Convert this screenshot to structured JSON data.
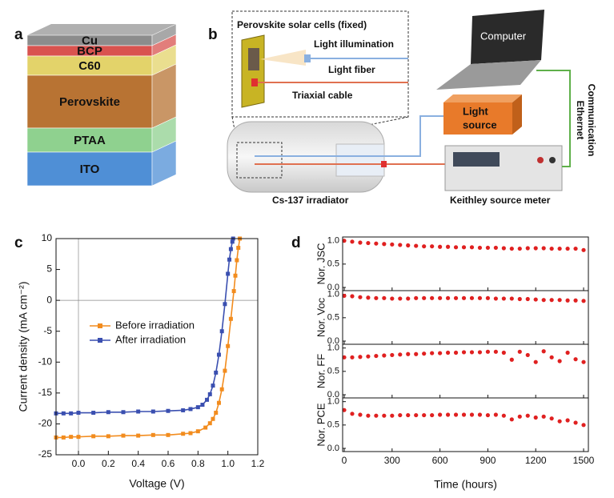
{
  "figure_a": {
    "label": "a",
    "layers": [
      {
        "name": "Cu",
        "color": "#8c8c8c"
      },
      {
        "name": "BCP",
        "color": "#d9534f"
      },
      {
        "name": "C60",
        "color": "#e3d36a"
      },
      {
        "name": "Perovskite",
        "color": "#b87333"
      },
      {
        "name": "PTAA",
        "color": "#8fd18f"
      },
      {
        "name": "ITO",
        "color": "#4f8fd6"
      }
    ]
  },
  "figure_b": {
    "label": "b",
    "sample": "Perovskite solar cells (fixed)",
    "illumination": "Light illumination",
    "fiber": "Light fiber",
    "cable": "Triaxial cable",
    "computer": "Computer",
    "ethernet": [
      "Ethernet",
      "Communication"
    ],
    "light_source": [
      "Light",
      "source"
    ],
    "irradiator": "Cs-137 irradiator",
    "meter": "Keithley source meter"
  },
  "chart_data": [
    {
      "type": "line",
      "label": "c",
      "xlabel": "Voltage (V)",
      "ylabel": "Current density (mA cm⁻²)",
      "xlim": [
        -0.15,
        1.2
      ],
      "ylim": [
        -25,
        10
      ],
      "xticks": [
        {
          "value": 0,
          "label": "0.0"
        },
        0.2,
        0.4,
        0.6,
        0.8,
        {
          "value": 1,
          "label": "1.0"
        },
        1.2
      ],
      "yticks": [
        -25,
        -20,
        -15,
        -10,
        -5,
        0,
        5,
        10
      ],
      "series": [
        {
          "name": "Before irradiation",
          "color": "#f28c1e",
          "x": [
            -0.15,
            -0.1,
            -0.05,
            0,
            0.1,
            0.2,
            0.3,
            0.4,
            0.5,
            0.6,
            0.7,
            0.75,
            0.8,
            0.85,
            0.88,
            0.9,
            0.92,
            0.94,
            0.96,
            0.98,
            1.0,
            1.02,
            1.04,
            1.05,
            1.06,
            1.07,
            1.08
          ],
          "values": [
            -22.2,
            -22.2,
            -22.1,
            -22.1,
            -22.0,
            -22.0,
            -21.9,
            -21.9,
            -21.8,
            -21.8,
            -21.6,
            -21.5,
            -21.2,
            -20.6,
            -19.9,
            -19.2,
            -18.2,
            -16.6,
            -14.4,
            -11.4,
            -7.4,
            -3.0,
            1.5,
            4.0,
            6.5,
            8.5,
            10
          ]
        },
        {
          "name": "After irradiation",
          "color": "#3a4fb0",
          "x": [
            -0.15,
            -0.1,
            -0.05,
            0,
            0.1,
            0.2,
            0.3,
            0.4,
            0.5,
            0.6,
            0.7,
            0.75,
            0.8,
            0.83,
            0.86,
            0.88,
            0.9,
            0.92,
            0.94,
            0.96,
            0.98,
            1.0,
            1.01,
            1.02,
            1.03,
            1.035
          ],
          "values": [
            -18.3,
            -18.3,
            -18.3,
            -18.2,
            -18.2,
            -18.1,
            -18.1,
            -18.0,
            -18.0,
            -17.9,
            -17.8,
            -17.6,
            -17.3,
            -16.9,
            -16.1,
            -15.2,
            -13.8,
            -11.7,
            -8.8,
            -5.0,
            -0.6,
            4.3,
            6.6,
            8.3,
            9.5,
            10
          ]
        }
      ]
    },
    {
      "type": "scatter",
      "label": "d",
      "xlabel": "Time (hours)",
      "color": "#e02020",
      "xlim": [
        -10,
        1530
      ],
      "xticks": [
        0,
        300,
        600,
        900,
        1200,
        1500
      ],
      "ylim": [
        0,
        1.08
      ],
      "yticks": [
        {
          "value": 0,
          "label": "0.0"
        },
        0.5,
        {
          "value": 1,
          "label": "1.0"
        }
      ],
      "x": [
        0,
        50,
        100,
        150,
        200,
        250,
        300,
        350,
        400,
        450,
        500,
        550,
        600,
        650,
        700,
        750,
        800,
        850,
        900,
        950,
        1000,
        1050,
        1100,
        1150,
        1200,
        1250,
        1300,
        1350,
        1400,
        1450,
        1500
      ],
      "series": [
        {
          "name": "Nor. JSC",
          "values": [
            1.0,
            0.98,
            0.96,
            0.95,
            0.94,
            0.93,
            0.92,
            0.91,
            0.9,
            0.89,
            0.88,
            0.88,
            0.87,
            0.87,
            0.86,
            0.86,
            0.86,
            0.85,
            0.85,
            0.85,
            0.84,
            0.83,
            0.83,
            0.84,
            0.84,
            0.84,
            0.83,
            0.83,
            0.83,
            0.83,
            0.8
          ]
        },
        {
          "name": "Nor. Voc",
          "values": [
            0.97,
            0.96,
            0.94,
            0.93,
            0.92,
            0.92,
            0.91,
            0.91,
            0.91,
            0.92,
            0.92,
            0.92,
            0.92,
            0.92,
            0.92,
            0.92,
            0.92,
            0.92,
            0.92,
            0.91,
            0.91,
            0.91,
            0.9,
            0.9,
            0.89,
            0.88,
            0.88,
            0.88,
            0.87,
            0.87,
            0.86
          ]
        },
        {
          "name": "Nor. FF",
          "values": [
            0.8,
            0.8,
            0.81,
            0.82,
            0.83,
            0.84,
            0.85,
            0.86,
            0.87,
            0.87,
            0.88,
            0.89,
            0.89,
            0.9,
            0.9,
            0.91,
            0.91,
            0.91,
            0.92,
            0.92,
            0.9,
            0.75,
            0.92,
            0.85,
            0.7,
            0.93,
            0.8,
            0.72,
            0.9,
            0.76,
            0.7
          ]
        },
        {
          "name": "Nor. PCE",
          "values": [
            0.82,
            0.74,
            0.72,
            0.7,
            0.7,
            0.7,
            0.7,
            0.71,
            0.71,
            0.71,
            0.71,
            0.71,
            0.72,
            0.72,
            0.72,
            0.72,
            0.72,
            0.72,
            0.71,
            0.72,
            0.7,
            0.62,
            0.68,
            0.7,
            0.66,
            0.68,
            0.64,
            0.58,
            0.6,
            0.55,
            0.5
          ]
        }
      ]
    }
  ]
}
